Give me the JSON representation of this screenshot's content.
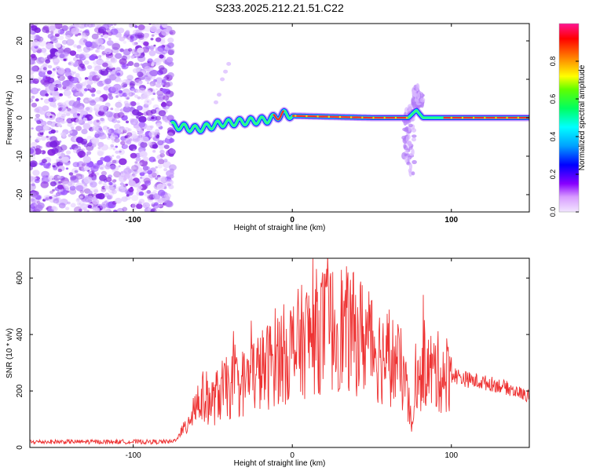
{
  "title": "S233.2025.212.21.51.C22",
  "colors": {
    "snr_line": "#ee3333",
    "spectrogram_ridge": "#ff2a2a",
    "background": "#ffffff",
    "axis": "#000000"
  },
  "chart_data": [
    {
      "type": "heatmap",
      "xlabel": "Height of straight line (km)",
      "ylabel": "Frequency (Hz)",
      "xlim": [
        -165,
        149
      ],
      "ylim": [
        -24.5,
        24.5
      ],
      "x_ticks": [
        -100,
        0,
        100
      ],
      "x_tick_labels": [
        "-100",
        "0",
        "100"
      ],
      "y_ticks": [
        -20,
        -10,
        0,
        10,
        20
      ],
      "y_tick_labels": [
        "-20",
        "-10",
        "0",
        "10",
        "20"
      ],
      "colorbar": {
        "label": "Normalized spectral amplitude",
        "range": [
          0,
          1
        ],
        "ticks": [
          0.0,
          0.2,
          0.4,
          0.6,
          0.8
        ],
        "tick_labels": [
          "0.0",
          "0.2",
          "0.4",
          "0.6",
          "0.8"
        ],
        "colormap": "rainbow"
      },
      "noise_region_x": [
        -165,
        -75
      ],
      "ridge": {
        "frequency_hz": 0,
        "x": [
          -76,
          -60,
          -45,
          -30,
          -15,
          -5,
          0,
          50,
          73,
          78,
          82,
          95,
          149
        ],
        "y": [
          -2,
          -3,
          -1.5,
          -1,
          -0.5,
          1,
          0.5,
          0,
          0,
          2,
          0,
          0,
          0
        ]
      }
    },
    {
      "type": "line",
      "xlabel": "Height of straight line (km)",
      "ylabel": "SNR (10 * v/v)",
      "xlim": [
        -165,
        149
      ],
      "ylim": [
        0,
        670
      ],
      "x_ticks": [
        -100,
        0,
        100
      ],
      "x_tick_labels": [
        "-100",
        "0",
        "100"
      ],
      "y_ticks": [
        0,
        200,
        400,
        600
      ],
      "y_tick_labels": [
        "0",
        "200",
        "400",
        "600"
      ],
      "series": [
        {
          "x": [
            -165,
            -140,
            -110,
            -90,
            -75,
            -68,
            -62,
            -55,
            -50,
            -45,
            -40,
            -35,
            -30,
            -25,
            -20,
            -15,
            -10,
            -5,
            0,
            5,
            10,
            15,
            20,
            25,
            30,
            35,
            40,
            45,
            50,
            55,
            60,
            65,
            70,
            73,
            76,
            78,
            80,
            82,
            85,
            90,
            95,
            100,
            110,
            120,
            130,
            140,
            149
          ],
          "y": [
            20,
            20,
            20,
            20,
            20,
            60,
            150,
            180,
            160,
            200,
            210,
            220,
            230,
            260,
            270,
            290,
            330,
            330,
            350,
            370,
            390,
            410,
            420,
            420,
            430,
            410,
            400,
            390,
            380,
            330,
            320,
            300,
            260,
            150,
            60,
            320,
            190,
            320,
            270,
            270,
            260,
            260,
            240,
            230,
            220,
            200,
            180
          ]
        }
      ]
    }
  ]
}
